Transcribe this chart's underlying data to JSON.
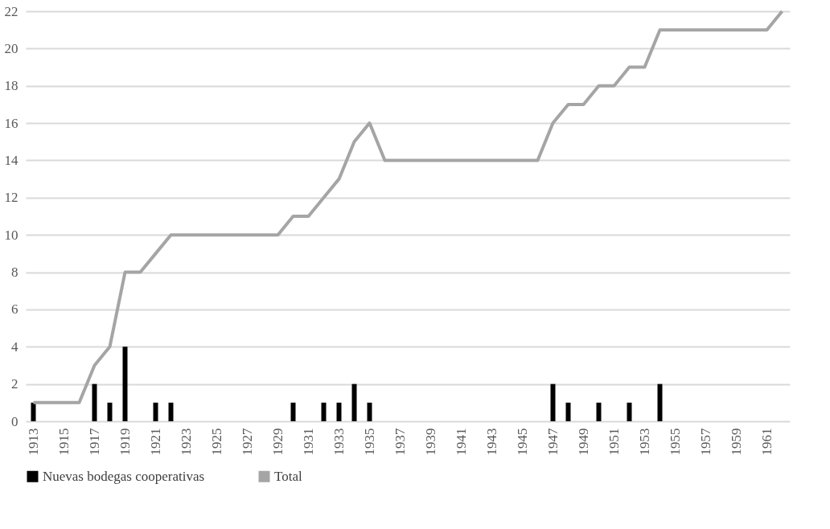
{
  "chart_data": {
    "type": "bar",
    "categories": [
      "1913",
      null,
      "1915",
      null,
      "1917",
      null,
      "1919",
      null,
      "1921",
      null,
      "1923",
      null,
      "1925",
      null,
      "1927",
      null,
      "1929",
      null,
      "1931",
      null,
      "1933",
      null,
      "1935",
      null,
      "1937",
      null,
      "1939",
      null,
      "1941",
      null,
      "1943",
      null,
      "1945",
      null,
      "1947",
      null,
      "1949",
      null,
      "1951",
      null,
      "1953",
      null,
      "1955",
      null,
      "1957",
      null,
      "1959",
      null,
      "1961",
      null
    ],
    "series": [
      {
        "name": "Nuevas bodegas cooperativas",
        "color": "#000000",
        "values": [
          1,
          null,
          null,
          null,
          2,
          1,
          4,
          null,
          1,
          1,
          null,
          null,
          null,
          null,
          null,
          null,
          null,
          1,
          null,
          1,
          1,
          2,
          1,
          null,
          null,
          null,
          null,
          null,
          null,
          null,
          null,
          null,
          null,
          null,
          2,
          1,
          null,
          1,
          null,
          1,
          null,
          2,
          null,
          null,
          null,
          null,
          null,
          null,
          null,
          null
        ]
      },
      {
        "name": "Total",
        "type": "line",
        "color": "#a5a5a5",
        "values": [
          1,
          1,
          1,
          1,
          3,
          4,
          8,
          8,
          9,
          10,
          10,
          10,
          10,
          10,
          10,
          10,
          10,
          11,
          11,
          12,
          13,
          15,
          16,
          14,
          14,
          14,
          14,
          14,
          14,
          14,
          14,
          14,
          14,
          14,
          16,
          17,
          17,
          18,
          18,
          19,
          19,
          21,
          21,
          21,
          21,
          21,
          21,
          21,
          21,
          22
        ]
      }
    ],
    "ylim": [
      0,
      22
    ],
    "yticks": [
      0,
      2,
      4,
      6,
      8,
      10,
      12,
      14,
      16,
      18,
      20,
      22
    ],
    "grid": "y",
    "legend": "bottom"
  }
}
